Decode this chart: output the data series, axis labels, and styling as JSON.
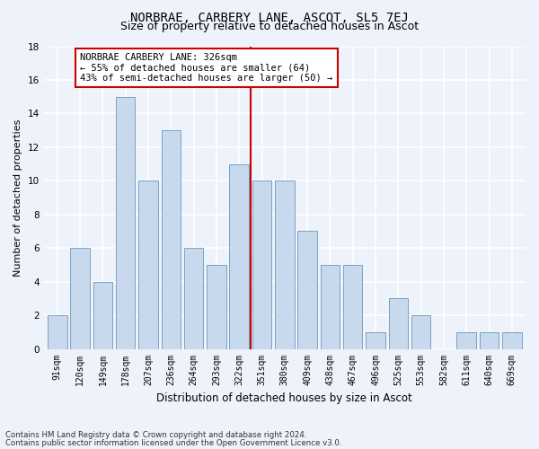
{
  "title": "NORBRAE, CARBERY LANE, ASCOT, SL5 7EJ",
  "subtitle": "Size of property relative to detached houses in Ascot",
  "xlabel": "Distribution of detached houses by size in Ascot",
  "ylabel": "Number of detached properties",
  "footer_line1": "Contains HM Land Registry data © Crown copyright and database right 2024.",
  "footer_line2": "Contains public sector information licensed under the Open Government Licence v3.0.",
  "bar_labels": [
    "91sqm",
    "120sqm",
    "149sqm",
    "178sqm",
    "207sqm",
    "236sqm",
    "264sqm",
    "293sqm",
    "322sqm",
    "351sqm",
    "380sqm",
    "409sqm",
    "438sqm",
    "467sqm",
    "496sqm",
    "525sqm",
    "553sqm",
    "582sqm",
    "611sqm",
    "640sqm",
    "669sqm"
  ],
  "bar_values": [
    2,
    6,
    4,
    15,
    10,
    13,
    6,
    5,
    11,
    10,
    10,
    7,
    5,
    5,
    1,
    3,
    2,
    0,
    1,
    1,
    1
  ],
  "bar_color": "#c9d9ed",
  "bar_edge_color": "#6699bb",
  "annotation_text": "NORBRAE CARBERY LANE: 326sqm\n← 55% of detached houses are smaller (64)\n43% of semi-detached houses are larger (50) →",
  "vline_x_bar_idx": 8,
  "vline_color": "#cc0000",
  "annotation_box_edge": "#cc0000",
  "ylim": [
    0,
    18
  ],
  "yticks": [
    0,
    2,
    4,
    6,
    8,
    10,
    12,
    14,
    16,
    18
  ],
  "bg_color": "#eef2fa",
  "grid_color": "#ffffff",
  "title_fontsize": 10,
  "subtitle_fontsize": 9,
  "axis_label_fontsize": 8.5,
  "tick_fontsize": 7,
  "annotation_fontsize": 7.5,
  "ylabel_fontsize": 8
}
